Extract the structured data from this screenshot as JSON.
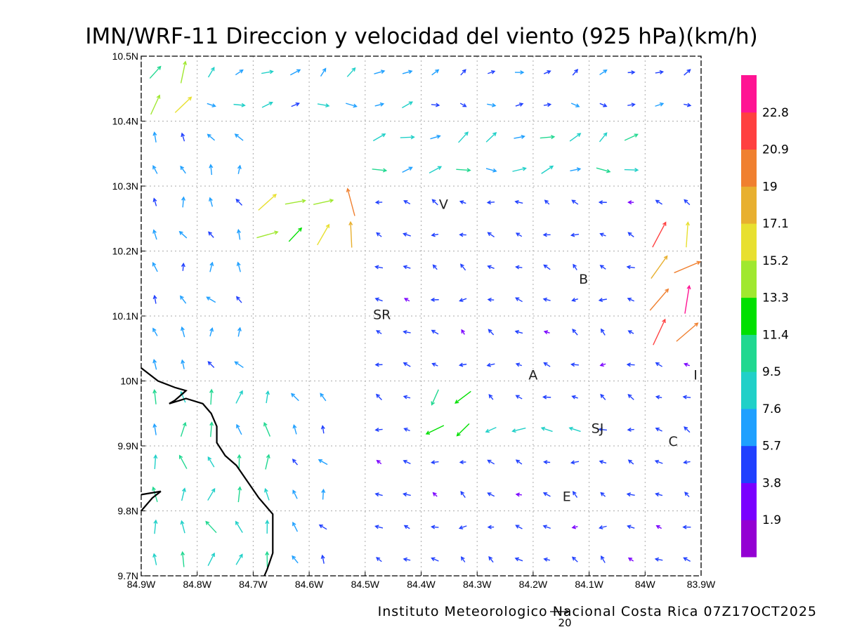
{
  "title": "IMN/WRF-11 Direccion y velocidad del viento (925 hPa)(km/h)",
  "footer": "Instituto Meteorologico Nacional Costa Rica 07Z17OCT2025",
  "reference_vector": {
    "value": "20"
  },
  "map": {
    "lon_range": [
      -84.9,
      -83.9
    ],
    "lat_range": [
      9.7,
      10.5
    ],
    "x_ticks": [
      {
        "value": -84.9,
        "label": "84.9W"
      },
      {
        "value": -84.8,
        "label": "84.8W"
      },
      {
        "value": -84.7,
        "label": "84.7W"
      },
      {
        "value": -84.6,
        "label": "84.6W"
      },
      {
        "value": -84.5,
        "label": "84.5W"
      },
      {
        "value": -84.4,
        "label": "84.4W"
      },
      {
        "value": -84.3,
        "label": "84.3W"
      },
      {
        "value": -84.2,
        "label": "84.2W"
      },
      {
        "value": -84.1,
        "label": "84.1W"
      },
      {
        "value": -84.0,
        "label": "84W"
      },
      {
        "value": -83.9,
        "label": "83.9W"
      }
    ],
    "y_ticks": [
      {
        "value": 9.7,
        "label": "9.7N"
      },
      {
        "value": 9.8,
        "label": "9.8N"
      },
      {
        "value": 9.9,
        "label": "9.9N"
      },
      {
        "value": 10.0,
        "label": "10N"
      },
      {
        "value": 10.1,
        "label": "10.1N"
      },
      {
        "value": 10.2,
        "label": "10.2N"
      },
      {
        "value": 10.3,
        "label": "10.3N"
      },
      {
        "value": 10.4,
        "label": "10.4N"
      },
      {
        "value": 10.5,
        "label": "10.5N"
      }
    ],
    "grid": true,
    "places": [
      {
        "name": "V",
        "lon": -84.36,
        "lat": 10.265
      },
      {
        "name": "SR",
        "lon": -84.47,
        "lat": 10.095
      },
      {
        "name": "B",
        "lon": -84.11,
        "lat": 10.15
      },
      {
        "name": "A",
        "lon": -84.2,
        "lat": 10.002
      },
      {
        "name": "I",
        "lon": -83.91,
        "lat": 10.002
      },
      {
        "name": "SJ",
        "lon": -84.085,
        "lat": 9.92
      },
      {
        "name": "C",
        "lon": -83.95,
        "lat": 9.9
      },
      {
        "name": "E",
        "lon": -84.14,
        "lat": 9.815
      }
    ],
    "coastline": [
      [
        -84.9,
        10.02
      ],
      [
        -84.87,
        10.0
      ],
      [
        -84.84,
        9.99
      ],
      [
        -84.82,
        9.985
      ],
      [
        -84.84,
        9.97
      ],
      [
        -84.85,
        9.965
      ],
      [
        -84.82,
        9.973
      ],
      [
        -84.79,
        9.965
      ],
      [
        -84.775,
        9.95
      ],
      [
        -84.765,
        9.93
      ],
      [
        -84.765,
        9.905
      ],
      [
        -84.75,
        9.885
      ],
      [
        -84.73,
        9.87
      ],
      [
        -84.71,
        9.845
      ],
      [
        -84.69,
        9.82
      ],
      [
        -84.665,
        9.795
      ],
      [
        -84.665,
        9.76
      ],
      [
        -84.665,
        9.735
      ],
      [
        -84.675,
        9.71
      ],
      [
        -84.68,
        9.7
      ]
    ],
    "peninsula_fragment": [
      [
        -84.9,
        9.8
      ],
      [
        -84.88,
        9.82
      ],
      [
        -84.865,
        9.83
      ],
      [
        -84.9,
        9.825
      ]
    ]
  },
  "legend": {
    "colors": [
      "#9400d3",
      "#7a00ff",
      "#2040ff",
      "#1fa0ff",
      "#20d0c8",
      "#20d890",
      "#00e000",
      "#a0e830",
      "#e8e030",
      "#e8b030",
      "#f08030",
      "#ff4040",
      "#ff1493"
    ],
    "thresholds": [
      "1.9",
      "3.8",
      "5.7",
      "7.6",
      "9.5",
      "11.4",
      "13.3",
      "15.2",
      "17.1",
      "19",
      "20.9",
      "22.8"
    ],
    "units": "km/h"
  },
  "chart_data": {
    "type": "vector-field",
    "title": "IMN/WRF-11 Direccion y velocidad del viento (925 hPa)(km/h)",
    "xlim": [
      -84.9,
      -83.9
    ],
    "ylim": [
      9.7,
      10.5
    ],
    "grid_spacing_deg": 0.05,
    "speed_scale_ref": 20,
    "regions": [
      {
        "lon": [
          -84.9,
          -84.66
        ],
        "lat": [
          9.7,
          10.0
        ],
        "dir_deg": 355,
        "speed": 9.0
      },
      {
        "lon": [
          -84.66,
          -84.55
        ],
        "lat": [
          9.7,
          10.0
        ],
        "dir_deg": 330,
        "speed": 6.0
      },
      {
        "lon": [
          -84.9,
          -84.8
        ],
        "lat": [
          10.4,
          10.5
        ],
        "dir_deg": 35,
        "speed": 13.5
      },
      {
        "lon": [
          -84.8,
          -84.4
        ],
        "lat": [
          10.42,
          10.5
        ],
        "dir_deg": 70,
        "speed": 7.0
      },
      {
        "lon": [
          -84.4,
          -83.9
        ],
        "lat": [
          10.42,
          10.5
        ],
        "dir_deg": 80,
        "speed": 5.0
      },
      {
        "lon": [
          -84.55,
          -84.5
        ],
        "lat": [
          10.2,
          10.3
        ],
        "dir_deg": 0,
        "speed": 17.0
      },
      {
        "lon": [
          -84.7,
          -84.55
        ],
        "lat": [
          10.2,
          10.3
        ],
        "dir_deg": 60,
        "speed": 14.0
      },
      {
        "lon": [
          -84.0,
          -83.9
        ],
        "lat": [
          10.05,
          10.25
        ],
        "dir_deg": 35,
        "speed": 20.0
      },
      {
        "lon": [
          -84.4,
          -84.3
        ],
        "lat": [
          9.9,
          10.0
        ],
        "dir_deg": 220,
        "speed": 11.5
      },
      {
        "lon": [
          -84.3,
          -84.1
        ],
        "lat": [
          9.9,
          9.97
        ],
        "dir_deg": 270,
        "speed": 8.0
      },
      {
        "lon": [
          -84.9,
          -84.7
        ],
        "lat": [
          10.0,
          10.4
        ],
        "dir_deg": 340,
        "speed": 6.0
      },
      {
        "lon": [
          -84.5,
          -84.0
        ],
        "lat": [
          10.3,
          10.42
        ],
        "dir_deg": 75,
        "speed": 8.5
      },
      {
        "lon": [
          -84.5,
          -83.9
        ],
        "lat": [
          9.7,
          10.3
        ],
        "dir_deg": 290,
        "speed": 4.5
      }
    ]
  }
}
